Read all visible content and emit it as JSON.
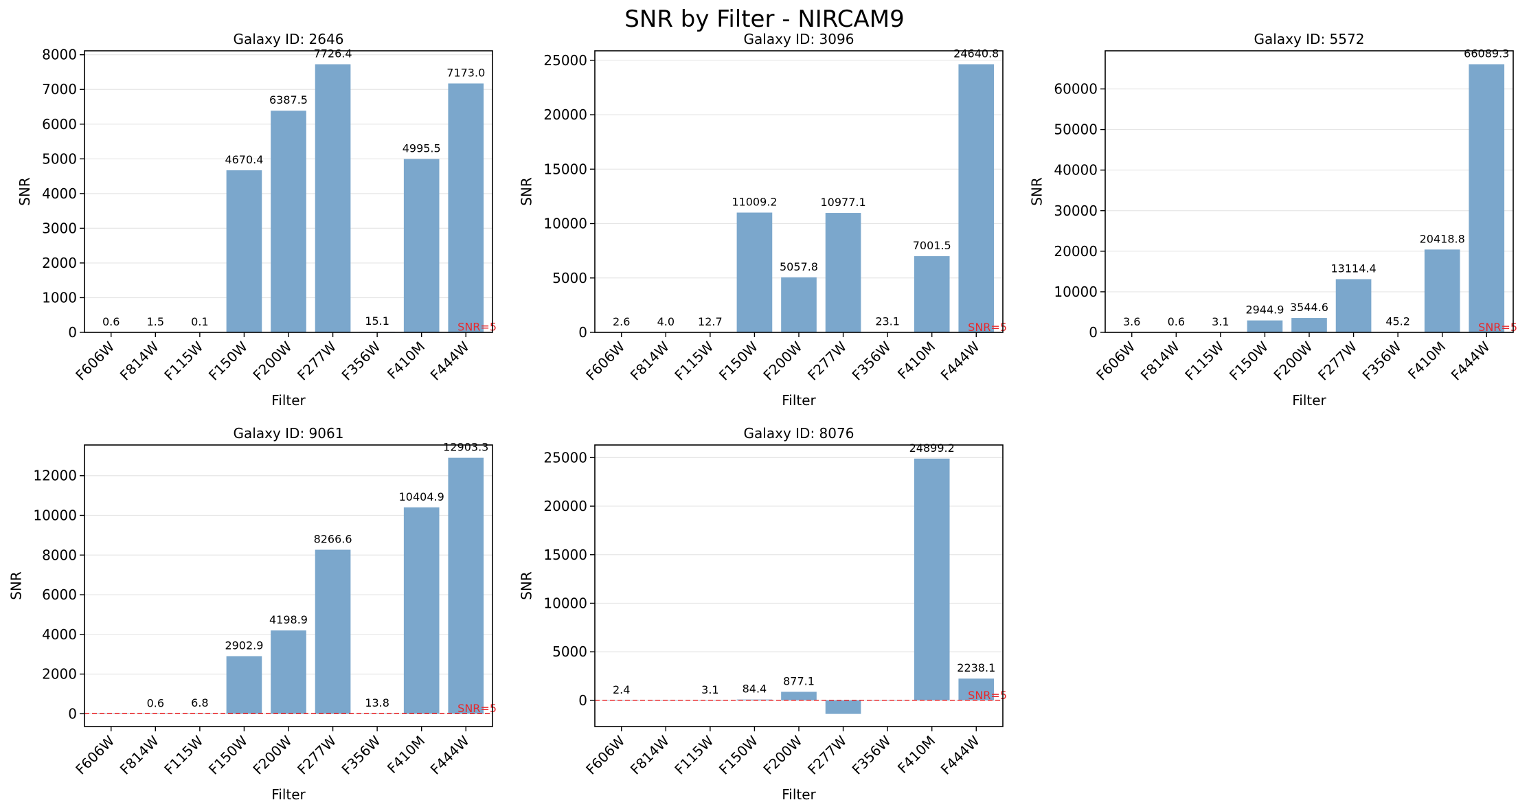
{
  "figure": {
    "title": "SNR by Filter - NIRCAM9"
  },
  "chart_data": [
    {
      "type": "bar",
      "title": "Galaxy ID: 2646",
      "xlabel": "Filter",
      "ylabel": "SNR",
      "categories": [
        "F606W",
        "F814W",
        "F115W",
        "F150W",
        "F200W",
        "F277W",
        "F356W",
        "F410M",
        "F444W"
      ],
      "values": [
        0.6,
        1.5,
        0.1,
        4670.4,
        6387.5,
        7726.4,
        15.1,
        4995.5,
        7173.0
      ],
      "value_labels": [
        "0.6",
        "1.5",
        "0.1",
        "4670.4",
        "6387.5",
        "7726.4",
        "15.1",
        "4995.5",
        "7173.0"
      ],
      "ylim": [
        0,
        8113
      ],
      "yticks": [
        0,
        1000,
        2000,
        3000,
        4000,
        5000,
        6000,
        7000,
        8000
      ],
      "threshold": {
        "value": 5,
        "label": "SNR=5",
        "show_line": false
      },
      "grid": "y"
    },
    {
      "type": "bar",
      "title": "Galaxy ID: 3096",
      "xlabel": "Filter",
      "ylabel": "SNR",
      "categories": [
        "F606W",
        "F814W",
        "F115W",
        "F150W",
        "F200W",
        "F277W",
        "F356W",
        "F410M",
        "F444W"
      ],
      "values": [
        2.6,
        4.0,
        12.7,
        11009.2,
        5057.8,
        10977.1,
        23.1,
        7001.5,
        24640.8
      ],
      "value_labels": [
        "2.6",
        "4.0",
        "12.7",
        "11009.2",
        "5057.8",
        "10977.1",
        "23.1",
        "7001.5",
        "24640.8"
      ],
      "ylim": [
        0,
        25873
      ],
      "yticks": [
        0,
        5000,
        10000,
        15000,
        20000,
        25000
      ],
      "threshold": {
        "value": 5,
        "label": "SNR=5",
        "show_line": false
      },
      "grid": "y"
    },
    {
      "type": "bar",
      "title": "Galaxy ID: 5572",
      "xlabel": "Filter",
      "ylabel": "SNR",
      "categories": [
        "F606W",
        "F814W",
        "F115W",
        "F150W",
        "F200W",
        "F277W",
        "F356W",
        "F410M",
        "F444W"
      ],
      "values": [
        3.6,
        0.6,
        3.1,
        2944.9,
        3544.6,
        13114.4,
        45.2,
        20418.8,
        66089.3
      ],
      "value_labels": [
        "3.6",
        "0.6",
        "3.1",
        "2944.9",
        "3544.6",
        "13114.4",
        "45.2",
        "20418.8",
        "66089.3"
      ],
      "ylim": [
        0,
        69394
      ],
      "yticks": [
        0,
        10000,
        20000,
        30000,
        40000,
        50000,
        60000
      ],
      "threshold": {
        "value": 5,
        "label": "SNR=5",
        "show_line": false
      },
      "grid": "y"
    },
    {
      "type": "bar",
      "title": "Galaxy ID: 9061",
      "xlabel": "Filter",
      "ylabel": "SNR",
      "categories": [
        "F606W",
        "F814W",
        "F115W",
        "F150W",
        "F200W",
        "F277W",
        "F356W",
        "F410M",
        "F444W"
      ],
      "values": [
        0.0,
        0.6,
        6.8,
        2902.9,
        4198.9,
        8266.6,
        13.8,
        10404.9,
        12903.3
      ],
      "value_labels": [
        null,
        "0.6",
        "6.8",
        "2902.9",
        "4198.9",
        "8266.6",
        "13.8",
        "10404.9",
        "12903.3"
      ],
      "ylim": [
        -645,
        13548
      ],
      "yticks": [
        0,
        2000,
        4000,
        6000,
        8000,
        10000,
        12000
      ],
      "threshold": {
        "value": 5,
        "label": "SNR=5",
        "show_line": true
      },
      "grid": "y"
    },
    {
      "type": "bar",
      "title": "Galaxy ID: 8076",
      "xlabel": "Filter",
      "ylabel": "SNR",
      "categories": [
        "F606W",
        "F814W",
        "F115W",
        "F150W",
        "F200W",
        "F277W",
        "F356W",
        "F410M",
        "F444W"
      ],
      "values": [
        2.4,
        0.0,
        3.1,
        84.4,
        877.1,
        -1400,
        0.0,
        24899.2,
        2238.1
      ],
      "value_labels": [
        "2.4",
        null,
        "3.1",
        "84.4",
        "877.1",
        null,
        null,
        "24899.2",
        "2238.1"
      ],
      "ylim": [
        -2700,
        26300
      ],
      "yticks": [
        0,
        5000,
        10000,
        15000,
        20000,
        25000
      ],
      "threshold": {
        "value": 5,
        "label": "SNR=5",
        "show_line": true
      },
      "grid": "y"
    }
  ],
  "colors": {
    "bar": "#7ba7cc",
    "threshold": "#e8282b",
    "grid": "#e6e6e6",
    "axis": "#000000"
  }
}
